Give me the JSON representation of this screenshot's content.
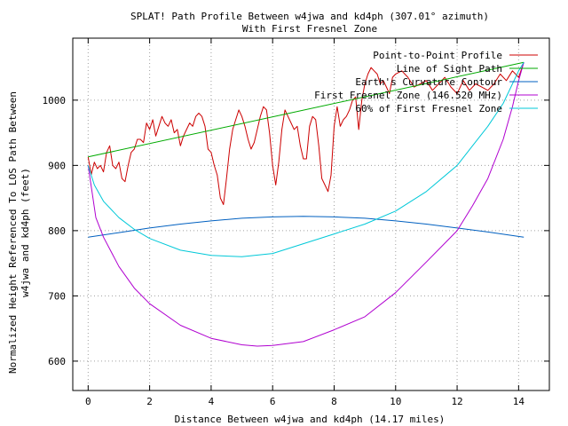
{
  "chart_data": {
    "type": "line",
    "title": "SPLAT! Path Profile Between w4jwa and kd4ph (307.01° azimuth)",
    "subtitle": "With First Fresnel Zone",
    "xlabel": "Distance Between w4jwa and kd4ph (14.17 miles)",
    "ylabel_line1": "Normalized Height Referenced To LOS Path Between",
    "ylabel_line2": "w4jwa and kd4ph (feet)",
    "xlim": [
      -0.5,
      15
    ],
    "ylim": [
      555,
      1095
    ],
    "xticks": [
      0,
      2,
      4,
      6,
      8,
      10,
      12,
      14
    ],
    "yticks": [
      600,
      700,
      800,
      900,
      1000
    ],
    "grid": true,
    "legend_position": "top-right",
    "series": [
      {
        "name": "Point-to-Point Profile",
        "color": "#cc0000",
        "x": [
          0.0,
          0.1,
          0.2,
          0.3,
          0.4,
          0.5,
          0.6,
          0.7,
          0.8,
          0.9,
          1.0,
          1.1,
          1.2,
          1.3,
          1.4,
          1.5,
          1.6,
          1.7,
          1.8,
          1.9,
          2.0,
          2.1,
          2.2,
          2.3,
          2.4,
          2.5,
          2.6,
          2.7,
          2.8,
          2.9,
          3.0,
          3.1,
          3.2,
          3.3,
          3.4,
          3.5,
          3.6,
          3.7,
          3.8,
          3.9,
          4.0,
          4.1,
          4.2,
          4.3,
          4.4,
          4.5,
          4.6,
          4.7,
          4.8,
          4.9,
          5.0,
          5.1,
          5.2,
          5.3,
          5.4,
          5.5,
          5.6,
          5.7,
          5.8,
          5.9,
          6.0,
          6.1,
          6.2,
          6.3,
          6.4,
          6.5,
          6.6,
          6.7,
          6.8,
          6.9,
          7.0,
          7.1,
          7.2,
          7.3,
          7.4,
          7.5,
          7.6,
          7.7,
          7.8,
          7.9,
          8.0,
          8.1,
          8.2,
          8.3,
          8.4,
          8.5,
          8.6,
          8.7,
          8.8,
          8.9,
          9.0,
          9.1,
          9.2,
          9.3,
          9.4,
          9.5,
          9.6,
          9.7,
          9.8,
          9.9,
          10.0,
          10.2,
          10.4,
          10.6,
          10.8,
          11.0,
          11.2,
          11.4,
          11.6,
          11.8,
          12.0,
          12.2,
          12.4,
          12.6,
          12.8,
          13.0,
          13.2,
          13.4,
          13.6,
          13.8,
          14.0,
          14.17
        ],
        "y": [
          913,
          886,
          905,
          895,
          900,
          890,
          920,
          930,
          900,
          895,
          905,
          880,
          875,
          900,
          920,
          925,
          940,
          940,
          935,
          965,
          955,
          970,
          945,
          960,
          975,
          965,
          960,
          970,
          950,
          955,
          930,
          945,
          955,
          965,
          960,
          975,
          980,
          975,
          960,
          925,
          920,
          900,
          885,
          850,
          840,
          880,
          925,
          955,
          970,
          985,
          975,
          960,
          940,
          925,
          935,
          955,
          975,
          990,
          985,
          950,
          900,
          870,
          905,
          955,
          985,
          975,
          965,
          955,
          960,
          930,
          910,
          910,
          960,
          975,
          970,
          930,
          880,
          870,
          860,
          885,
          960,
          990,
          960,
          970,
          975,
          985,
          1000,
          1005,
          955,
          1000,
          1025,
          1040,
          1050,
          1045,
          1040,
          1025,
          1030,
          1020,
          1010,
          1035,
          1040,
          1045,
          1035,
          1020,
          1025,
          1030,
          1015,
          1025,
          1035,
          1020,
          1010,
          1030,
          1015,
          1025,
          1020,
          1015,
          1025,
          1040,
          1030,
          1045,
          1035,
          1058
        ]
      },
      {
        "name": "Line of Sight Path",
        "color": "#00aa00",
        "x": [
          0.0,
          14.17
        ],
        "y": [
          913,
          1058
        ]
      },
      {
        "name": "Earth's Curvature Contour",
        "color": "#0060c0",
        "x": [
          0.0,
          1.0,
          2.0,
          3.0,
          4.0,
          5.0,
          6.0,
          7.0,
          8.0,
          9.0,
          10.0,
          11.0,
          12.0,
          13.0,
          14.17
        ],
        "y": [
          790,
          797,
          804,
          810,
          815,
          819,
          821,
          822,
          821,
          819,
          815,
          810,
          804,
          798,
          790
        ]
      },
      {
        "name": "First Fresnel Zone (146.520 MHz)",
        "color": "#b000d0",
        "x": [
          0.0,
          0.25,
          0.5,
          1.0,
          1.5,
          2.0,
          3.0,
          4.0,
          5.0,
          5.5,
          6.0,
          7.0,
          8.0,
          9.0,
          10.0,
          11.0,
          12.0,
          12.5,
          13.0,
          13.5,
          13.8,
          14.0,
          14.17
        ],
        "y": [
          900,
          820,
          790,
          745,
          712,
          688,
          655,
          635,
          625,
          623,
          624,
          630,
          648,
          668,
          705,
          752,
          800,
          838,
          880,
          940,
          990,
          1030,
          1058
        ]
      },
      {
        "name": "60% of First Fresnel Zone",
        "color": "#00c8d8",
        "x": [
          0.0,
          0.2,
          0.5,
          1.0,
          1.5,
          2.0,
          3.0,
          4.0,
          5.0,
          6.0,
          7.0,
          8.0,
          9.0,
          10.0,
          11.0,
          12.0,
          12.5,
          13.0,
          13.5,
          13.8,
          14.0,
          14.17
        ],
        "y": [
          900,
          870,
          845,
          820,
          802,
          788,
          770,
          762,
          760,
          765,
          780,
          795,
          810,
          830,
          860,
          900,
          930,
          960,
          995,
          1025,
          1045,
          1058
        ]
      }
    ]
  }
}
